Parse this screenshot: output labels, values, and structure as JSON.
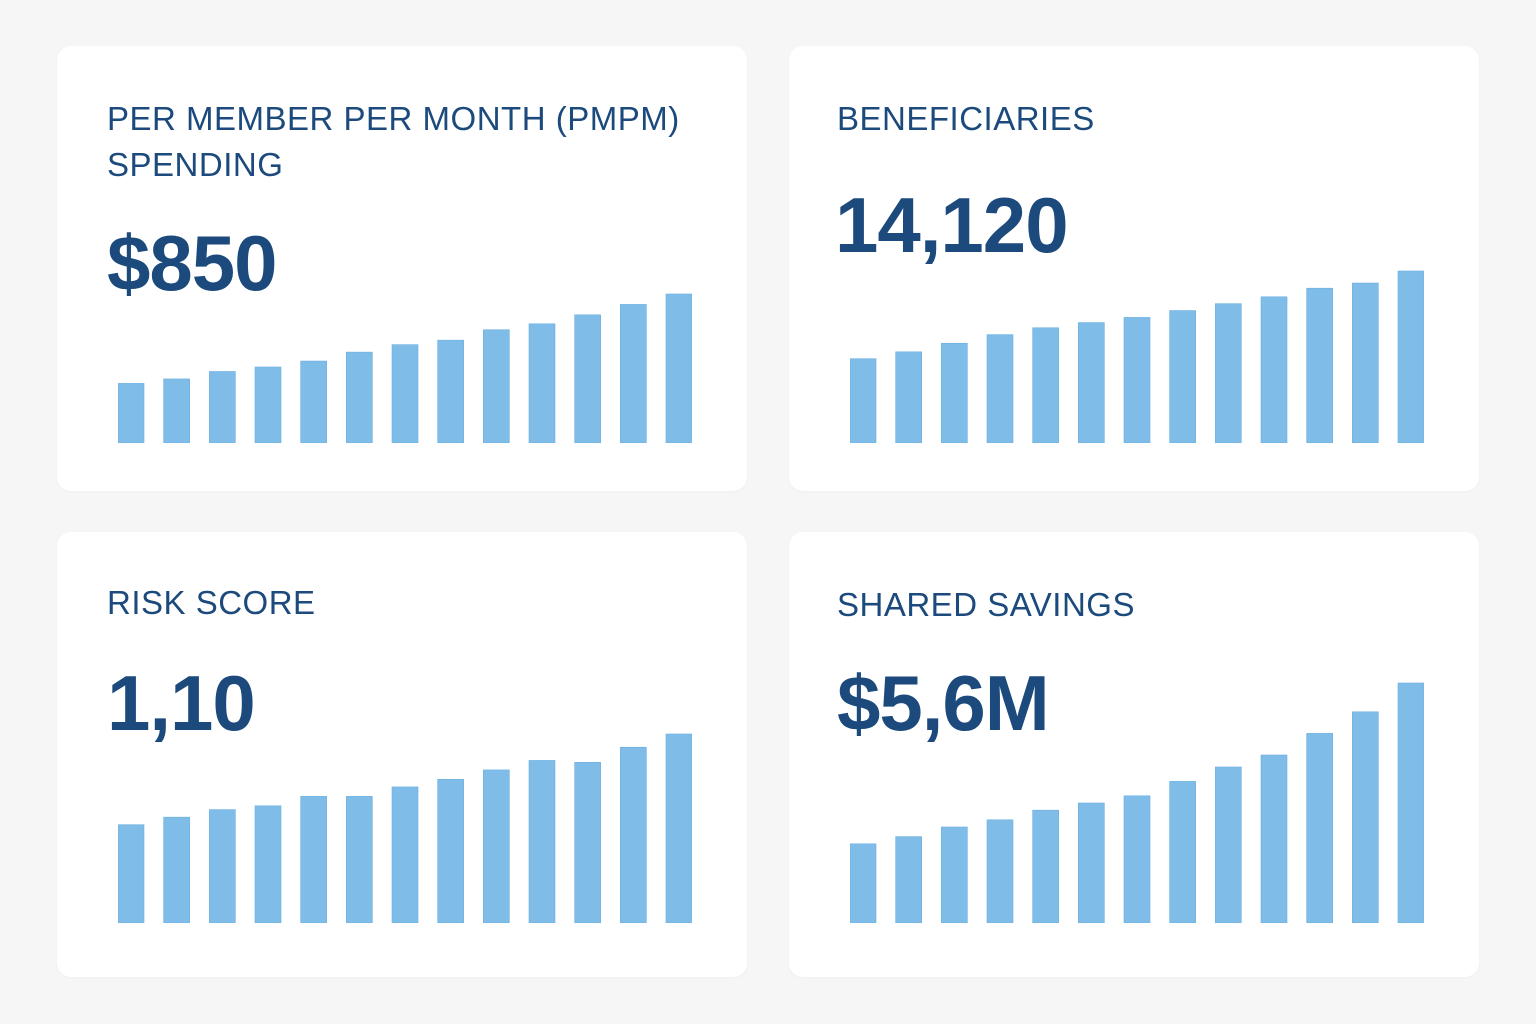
{
  "colors": {
    "background": "#f6f6f6",
    "card": "#ffffff",
    "text": "#1c4a7c",
    "bar": "#7fbde8",
    "bar_stroke": "#6aaee0"
  },
  "cards": [
    {
      "title": "PER MEMBER PER MONTH (PMPM) SPENDING",
      "value": "$850"
    },
    {
      "title": "BENEFICIARIES",
      "value": "14,120"
    },
    {
      "title": "RISK SCORE",
      "value": "1,10"
    },
    {
      "title": "SHARED SAVINGS",
      "value": "$5,6M"
    }
  ],
  "chart_data": [
    {
      "type": "bar",
      "title": "",
      "xlabel": "",
      "ylabel": "",
      "grid": false,
      "values_relative": [
        40,
        43,
        48,
        51,
        55,
        61,
        66,
        69,
        76,
        80,
        86,
        93,
        100
      ]
    },
    {
      "type": "bar",
      "title": "",
      "xlabel": "",
      "ylabel": "",
      "grid": false,
      "values_relative": [
        49,
        53,
        58,
        63,
        67,
        70,
        73,
        77,
        81,
        85,
        90,
        93,
        100
      ]
    },
    {
      "type": "bar",
      "title": "",
      "xlabel": "",
      "ylabel": "",
      "grid": false,
      "values_relative": [
        52,
        56,
        60,
        62,
        67,
        67,
        72,
        76,
        81,
        86,
        85,
        93,
        100
      ]
    },
    {
      "type": "bar",
      "title": "",
      "xlabel": "",
      "ylabel": "",
      "grid": false,
      "values_relative": [
        33,
        36,
        40,
        43,
        47,
        50,
        53,
        59,
        65,
        70,
        79,
        88,
        100
      ]
    }
  ]
}
